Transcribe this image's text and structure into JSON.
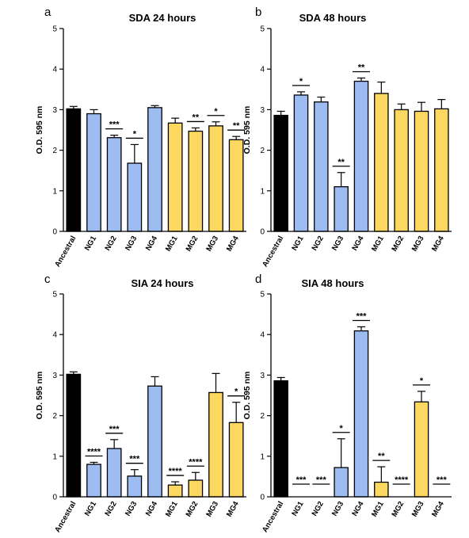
{
  "colors": {
    "Ancestral": "#000000",
    "NG": "#9dbcf2",
    "MG": "#fdd860",
    "edge": "#000000"
  },
  "chart_data": [
    {
      "type": "bar",
      "panel": "a",
      "title": "SDA 24 hours",
      "ylabel": "O.D. 595 nm",
      "ylim": [
        0,
        5
      ],
      "yticks": [
        "0",
        "1",
        "2",
        "3",
        "4",
        "5"
      ],
      "categories": [
        "Ancestral",
        "NG1",
        "NG2",
        "NG3",
        "NG4",
        "MG1",
        "MG2",
        "MG3",
        "MG4"
      ],
      "values": [
        3.02,
        2.9,
        2.31,
        1.68,
        3.05,
        2.67,
        2.47,
        2.6,
        2.26
      ],
      "errors": [
        0.06,
        0.1,
        0.06,
        0.46,
        0.05,
        0.12,
        0.08,
        0.1,
        0.08
      ],
      "significance": [
        "",
        "",
        "***",
        "*",
        "",
        "",
        "**",
        "*",
        "**"
      ]
    },
    {
      "type": "bar",
      "panel": "b",
      "title": "SDA 48 hours",
      "ylabel": "O.D. 595 nm",
      "ylim": [
        0,
        5
      ],
      "yticks": [
        "0",
        "1",
        "2",
        "3",
        "4",
        "5"
      ],
      "categories": [
        "Ancestral",
        "NG1",
        "NG2",
        "NG3",
        "NG4",
        "MG1",
        "MG2",
        "MG3",
        "MG4"
      ],
      "values": [
        2.86,
        3.36,
        3.19,
        1.1,
        3.7,
        3.4,
        3.0,
        2.96,
        3.02
      ],
      "errors": [
        0.1,
        0.08,
        0.12,
        0.35,
        0.08,
        0.28,
        0.14,
        0.22,
        0.23
      ],
      "significance": [
        "",
        "*",
        "",
        "**",
        "**",
        "",
        "",
        "",
        ""
      ]
    },
    {
      "type": "bar",
      "panel": "c",
      "title": "SIA 24 hours",
      "ylabel": "O.D. 595 nm",
      "ylim": [
        0,
        5
      ],
      "yticks": [
        "0",
        "1",
        "2",
        "3",
        "4",
        "5"
      ],
      "categories": [
        "Ancestral",
        "NG1",
        "NG2",
        "NG3",
        "NG4",
        "MG1",
        "MG2",
        "MG3",
        "MG4"
      ],
      "values": [
        3.02,
        0.8,
        1.19,
        0.51,
        2.73,
        0.29,
        0.41,
        2.57,
        1.83
      ],
      "errors": [
        0.06,
        0.05,
        0.22,
        0.16,
        0.23,
        0.08,
        0.19,
        0.47,
        0.5
      ],
      "significance": [
        "",
        "****",
        "***",
        "***",
        "",
        "****",
        "****",
        "",
        "*"
      ]
    },
    {
      "type": "bar",
      "panel": "d",
      "title": "SIA 48 hours",
      "ylabel": "O.D. 595 nm",
      "ylim": [
        0,
        5
      ],
      "yticks": [
        "0",
        "1",
        "2",
        "3",
        "4",
        "5"
      ],
      "categories": [
        "Ancestral",
        "NG1",
        "NG2",
        "NG3",
        "NG4",
        "MG1",
        "MG2",
        "MG3",
        "MG4"
      ],
      "values": [
        2.86,
        0.0,
        0.0,
        0.72,
        4.09,
        0.36,
        0.0,
        2.34,
        0.0
      ],
      "errors": [
        0.08,
        0.0,
        0.0,
        0.71,
        0.1,
        0.38,
        0.0,
        0.26,
        0.0
      ],
      "significance": [
        "",
        "***",
        "***",
        "*",
        "***",
        "**",
        "****",
        "*",
        "***"
      ]
    }
  ]
}
